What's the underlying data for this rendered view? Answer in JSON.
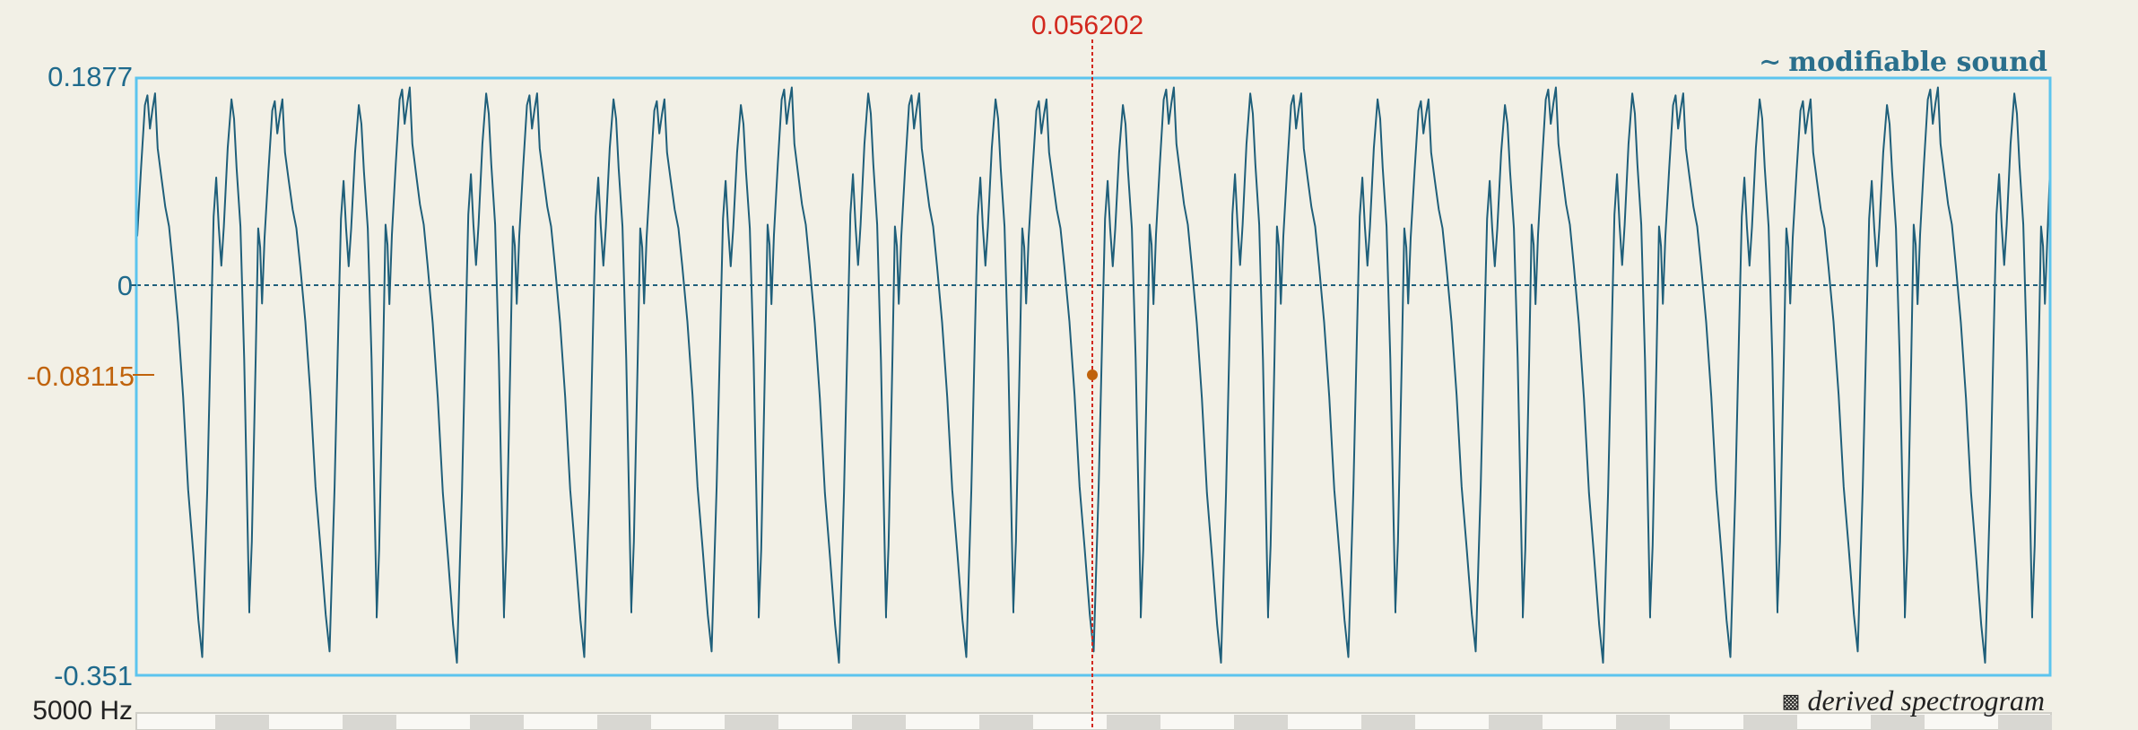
{
  "sound_panel": {
    "title": "modifiable sound",
    "title_icon": "tilde-icon",
    "y_max_label": "0.1877",
    "y_zero_label": "0",
    "y_min_label": "-0.351",
    "cursor_time_label": "0.056202",
    "cursor_value_label": "-0.08115"
  },
  "spectrogram_panel": {
    "title": "derived spectrogram",
    "title_icon": "square-icon",
    "freq_label": "5000 Hz"
  },
  "colors": {
    "background": "#f2f0e6",
    "waveform": "#1f5f7a",
    "frame": "#5cc4ee",
    "cursor": "#d2281e",
    "cursor_value": "#c0630c",
    "zero_line": "#1f5f7a"
  }
}
